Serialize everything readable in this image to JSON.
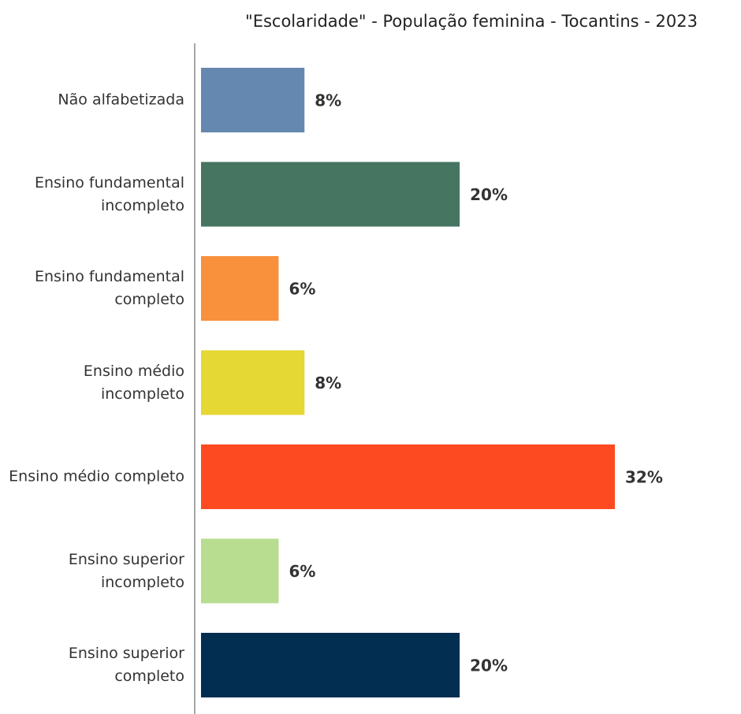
{
  "chart_data": {
    "type": "bar",
    "orientation": "horizontal",
    "title": "\"Escolaridade\" - População feminina - Tocantins - 2023",
    "categories": [
      "Não alfabetizada",
      "Ensino fundamental incompleto",
      "Ensino fundamental completo",
      "Ensino médio incompleto",
      "Ensino médio completo",
      "Ensino superior incompleto",
      "Ensino superior completo"
    ],
    "values": [
      8,
      20,
      6,
      8,
      32,
      6,
      20
    ],
    "value_labels": [
      "8%",
      "20%",
      "6%",
      "8%",
      "32%",
      "6%",
      "20%"
    ],
    "colors": [
      "#6588b0",
      "#467561",
      "#f8903c",
      "#e5d734",
      "#fd4a20",
      "#b8dc90",
      "#022e52"
    ]
  }
}
